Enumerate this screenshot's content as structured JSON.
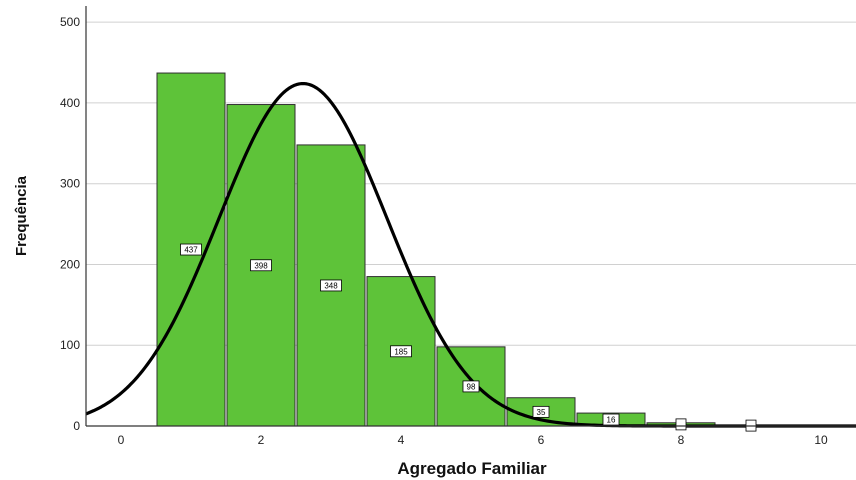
{
  "chart_data": {
    "type": "bar",
    "xlabel": "Agregado Familiar",
    "ylabel": "Frequência",
    "x": [
      1,
      2,
      3,
      4,
      5,
      6,
      7,
      8,
      9
    ],
    "values": [
      437,
      398,
      348,
      185,
      98,
      35,
      16,
      4,
      1
    ],
    "data_labels": [
      "437",
      "398",
      "348",
      "185",
      "98",
      "35",
      "16",
      "",
      ""
    ],
    "xlim": [
      -0.5,
      10.5
    ],
    "ylim": [
      0,
      520
    ],
    "xticks": [
      "0",
      "2",
      "4",
      "6",
      "8",
      "10"
    ],
    "yticks": [
      "0",
      "100",
      "200",
      "300",
      "400",
      "500"
    ],
    "grid": "horizontal",
    "overlay": "normal-curve",
    "normal_curve": {
      "mean": 2.6,
      "sd": 1.2,
      "peak": 424
    },
    "colors": {
      "bar": "#5ec339",
      "bar_edge": "#2f2f2f",
      "curve": "#000000",
      "grid": "#d0d0d0"
    }
  }
}
